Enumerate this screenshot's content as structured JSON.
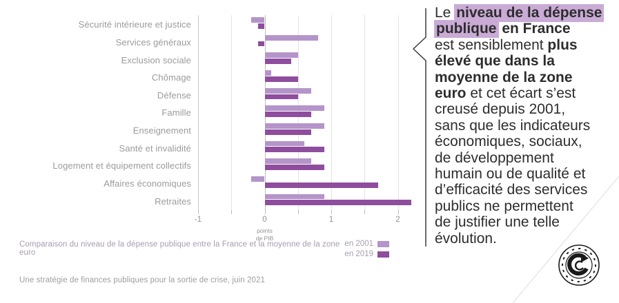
{
  "chart_data": {
    "type": "bar",
    "orientation": "horizontal",
    "title": "Comparaison du niveau de la dépense publique entre la France et la moyenne de la zone euro",
    "categories": [
      "Sécurité intérieure et justice",
      "Services généraux",
      "Exclusion sociale",
      "Chômage",
      "Défense",
      "Famille",
      "Enseignement",
      "Santé et invalidité",
      "Logement et équipement collectifs",
      "Affaires économiques",
      "Retraites"
    ],
    "series": [
      {
        "name": "en 2001",
        "color": "#b494c9",
        "values": [
          -0.2,
          0.8,
          0.5,
          0.1,
          0.7,
          0.9,
          0.9,
          0.6,
          0.7,
          -0.2,
          0.9
        ]
      },
      {
        "name": "en 2019",
        "color": "#8f4d9e",
        "values": [
          -0.1,
          -0.1,
          0.4,
          0.5,
          0.5,
          0.7,
          0.7,
          0.9,
          0.9,
          1.7,
          2.2
        ]
      }
    ],
    "xlabel": "points de PIB",
    "xlim": [
      -1,
      2.25
    ],
    "gridlines": [
      -1,
      -0.5,
      0,
      0.5,
      1,
      1.5,
      2
    ],
    "x_ticks": [
      -1,
      0,
      1,
      2
    ],
    "legend_position": "bottom-right",
    "grid": true
  },
  "axis": {
    "unit_label_line1": "points",
    "unit_label_line2": "de PIB"
  },
  "caption": "Comparaison du niveau de la dépense publique entre la France et la moyenne de la zone euro",
  "legend": {
    "entries": [
      {
        "label": "en 2001",
        "color": "#b494c9"
      },
      {
        "label": "en 2019",
        "color": "#8f4d9e"
      }
    ]
  },
  "source": "Une stratégie de finances publiques pour la sortie de crise, juin 2021",
  "annotation": {
    "highlight_color": "#c9abd6",
    "lines": [
      [
        {
          "t": "Le ",
          "b": false,
          "h": false
        },
        {
          "t": "niveau de la dépense",
          "b": true,
          "h": true
        }
      ],
      [
        {
          "t": "publique",
          "b": true,
          "h": true
        },
        {
          "t": " en France",
          "b": true,
          "h": false
        }
      ],
      [
        {
          "t": "est sensiblement ",
          "b": false,
          "h": false
        },
        {
          "t": "plus",
          "b": true,
          "h": false
        }
      ],
      [
        {
          "t": "élevé que dans la",
          "b": true,
          "h": false
        }
      ],
      [
        {
          "t": "moyenne de la zone",
          "b": true,
          "h": false
        }
      ],
      [
        {
          "t": "euro",
          "b": true,
          "h": false
        },
        {
          "t": " et cet écart s’est",
          "b": false,
          "h": false
        }
      ],
      [
        {
          "t": "creusé depuis 2001,",
          "b": false,
          "h": false
        }
      ],
      [
        {
          "t": "sans que les indicateurs",
          "b": false,
          "h": false
        }
      ],
      [
        {
          "t": "économiques, sociaux,",
          "b": false,
          "h": false
        }
      ],
      [
        {
          "t": "de développement",
          "b": false,
          "h": false
        }
      ],
      [
        {
          "t": "humain ou de qualité et",
          "b": false,
          "h": false
        }
      ],
      [
        {
          "t": "d’efficacité des services",
          "b": false,
          "h": false
        }
      ],
      [
        {
          "t": "publics ne permettent",
          "b": false,
          "h": false
        }
      ],
      [
        {
          "t": "de justifier une telle",
          "b": false,
          "h": false
        }
      ],
      [
        {
          "t": "évolution.",
          "b": false,
          "h": false
        }
      ]
    ]
  },
  "logo": {
    "name": "cour-des-comptes-seal"
  }
}
